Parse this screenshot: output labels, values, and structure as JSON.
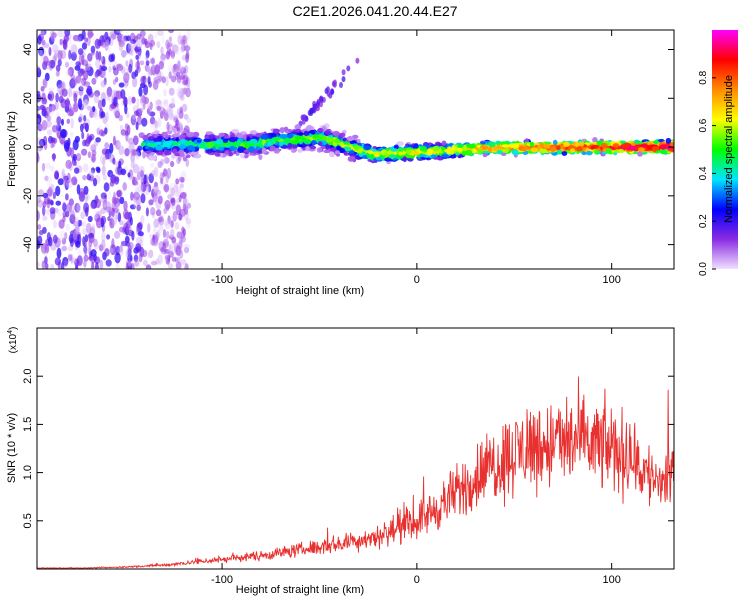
{
  "title": "C2E1.2026.041.20.44.E27",
  "chart_data": [
    {
      "type": "heatmap",
      "title": "C2E1.2026.041.20.44.E27",
      "xlabel": "Height of straight line (km)",
      "ylabel": "Frequency (Hz)",
      "xlim": [
        -195,
        132
      ],
      "ylim": [
        -50,
        48
      ],
      "x_ticks": [
        -100,
        0,
        100
      ],
      "x_tick_labels": [
        "-100",
        "0",
        "100"
      ],
      "y_ticks": [
        -40,
        -20,
        0,
        20,
        40
      ],
      "y_tick_labels": [
        "-40",
        "-20",
        "0",
        "20",
        "40"
      ],
      "colorbar": {
        "label": "Normalized spectral amplitude",
        "range": [
          0.0,
          1.0
        ],
        "ticks": [
          0.0,
          0.2,
          0.4,
          0.6,
          0.8
        ],
        "tick_labels": [
          "0.0",
          "0.2",
          "0.4",
          "0.6",
          "0.8"
        ],
        "colors": [
          "#f0e0ff",
          "#8a2be2",
          "#0000ff",
          "#00e5ff",
          "#00ff00",
          "#ffff00",
          "#ff8c00",
          "#ff0000",
          "#ff00ff"
        ]
      },
      "features": [
        {
          "name": "noise region",
          "x_range": [
            -195,
            -125
          ],
          "y_range": [
            -50,
            48
          ],
          "amplitude": 0.15
        },
        {
          "name": "main signal band",
          "x_range": [
            -140,
            132
          ],
          "y_range": [
            -5,
            5
          ],
          "amplitude": 0.6
        },
        {
          "name": "faint rising streak",
          "x_range": [
            -60,
            -30
          ],
          "y_range": [
            10,
            35
          ],
          "amplitude": 0.12
        }
      ]
    },
    {
      "type": "line",
      "xlabel": "Height of straight line (km)",
      "ylabel": "SNR (10 * v/v)",
      "scale_label": "(x10",
      "scale_exponent": "4",
      "xlim": [
        -195,
        132
      ],
      "ylim": [
        0,
        2.5
      ],
      "x_ticks": [
        -100,
        0,
        100
      ],
      "x_tick_labels": [
        "-100",
        "0",
        "100"
      ],
      "y_ticks": [
        0.5,
        1.0,
        1.5,
        2.0
      ],
      "y_tick_labels": [
        "0.5",
        "1.0",
        "1.5",
        "2.0"
      ],
      "series": [
        {
          "name": "SNR",
          "color": "#e8302e",
          "x": [
            -195,
            -170,
            -150,
            -130,
            -115,
            -100,
            -80,
            -60,
            -40,
            -20,
            0,
            10,
            20,
            30,
            40,
            50,
            60,
            70,
            80,
            90,
            100,
            110,
            115,
            120,
            125,
            130
          ],
          "values": [
            0.01,
            0.01,
            0.02,
            0.04,
            0.07,
            0.1,
            0.14,
            0.2,
            0.26,
            0.34,
            0.5,
            0.62,
            0.78,
            0.95,
            1.1,
            1.2,
            1.28,
            1.3,
            1.32,
            1.3,
            1.25,
            1.15,
            1.05,
            0.95,
            0.9,
            0.95
          ]
        }
      ]
    }
  ]
}
